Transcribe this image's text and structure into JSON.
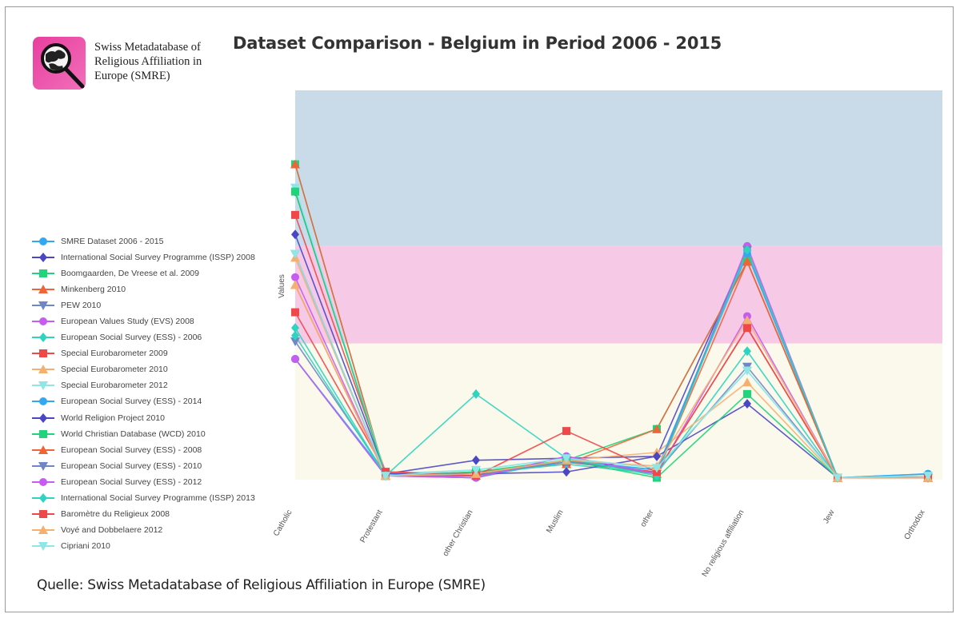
{
  "logo": {
    "text": "Swiss Metadatabase of\nReligious Affiliation in\nEurope (SMRE)",
    "icon": "magnifier-over-europe-map-icon",
    "color": "#e83e9e"
  },
  "source_note": "Quelle: Swiss Metadatabase of Religious Affiliation in Europe (SMRE)",
  "chart_data": {
    "type": "line",
    "title": "Dataset Comparison - Belgium in Period 2006 - 2015",
    "xlabel": "",
    "ylabel": "Values",
    "ylim": [
      0,
      100
    ],
    "y_scale_note": "relative (no tick labels shown)",
    "grid": false,
    "legend_position": "left",
    "background_bands": [
      {
        "from": 0,
        "to": 35,
        "color": "#fbf8ec"
      },
      {
        "from": 35,
        "to": 60,
        "color": "#f6c9e6"
      },
      {
        "from": 60,
        "to": 100,
        "color": "#c9dbe8"
      }
    ],
    "categories": [
      "Catholic",
      "Protestant",
      "other Christian",
      "Muslim",
      "other",
      "No religious affiliation",
      "Jew",
      "Orthodox"
    ],
    "series": [
      {
        "name": "SMRE Dataset 2006 - 2015",
        "color": "#33a8f0",
        "marker": "circle",
        "values": [
          31,
          1,
          0.5,
          5,
          2.5,
          58,
          0.5,
          1.5
        ]
      },
      {
        "name": "International Social Survey Programme (ISSP) 2008",
        "color": "#4a47c4",
        "marker": "diamond",
        "values": [
          74,
          1.5,
          5,
          5.5,
          6,
          59,
          0.5,
          0.5
        ]
      },
      {
        "name": "Boomgaarden, De Vreese et al. 2009",
        "color": "#1fd47a",
        "marker": "square",
        "values": [
          81,
          1,
          1,
          5,
          13,
          56,
          0.5,
          0.5
        ]
      },
      {
        "name": "Minkenberg 2010",
        "color": "#f06438",
        "marker": "triangle-up",
        "values": [
          81,
          1,
          2,
          4,
          13,
          56,
          0.5,
          0.5
        ]
      },
      {
        "name": "PEW 2010",
        "color": "#6f87c4",
        "marker": "triangle-down",
        "values": [
          35.5,
          1.5,
          1.5,
          4.5,
          2,
          29,
          0.5,
          0.5
        ]
      },
      {
        "name": "European Values Study (EVS) 2008",
        "color": "#c65cf0",
        "marker": "circle",
        "values": [
          52,
          1,
          0.5,
          6,
          1.5,
          60,
          0.5,
          0.5
        ]
      },
      {
        "name": "European Social Survey (ESS) - 2006",
        "color": "#2ed4c0",
        "marker": "diamond",
        "values": [
          39,
          1,
          1.5,
          4,
          1.5,
          33,
          0.5,
          0.5
        ]
      },
      {
        "name": "Special Eurobarometer 2009",
        "color": "#f04848",
        "marker": "square",
        "values": [
          68,
          2,
          1.5,
          4.5,
          2,
          39,
          0.5,
          0.5
        ]
      },
      {
        "name": "Special Eurobarometer 2010",
        "color": "#f5b070",
        "marker": "triangle-up",
        "values": [
          57,
          1,
          1.5,
          5,
          7,
          25,
          0.5,
          0.5
        ]
      },
      {
        "name": "Special Eurobarometer 2012",
        "color": "#8ee6e6",
        "marker": "triangle-down",
        "values": [
          75,
          1.5,
          2.5,
          5.5,
          3,
          28,
          0.5,
          1
        ]
      },
      {
        "name": "European Social Survey (ESS) - 2014",
        "color": "#33a8f0",
        "marker": "circle",
        "values": [
          31,
          1.5,
          1.5,
          4.5,
          2.5,
          59,
          0.5,
          1.5
        ]
      },
      {
        "name": "World Religion Project 2010",
        "color": "#4a47c4",
        "marker": "diamond",
        "values": [
          63,
          1.5,
          1.5,
          2,
          6,
          19.5,
          0.5,
          0.5
        ]
      },
      {
        "name": "World Christian Database (WCD) 2010",
        "color": "#1fd47a",
        "marker": "square",
        "values": [
          74,
          1,
          2,
          5,
          0.5,
          22,
          0.5,
          0.5
        ]
      },
      {
        "name": "European Social Survey (ESS) - 2008",
        "color": "#f06438",
        "marker": "triangle-up",
        "values": [
          50,
          1,
          1,
          5,
          1.5,
          56,
          0.5,
          0.5
        ]
      },
      {
        "name": "European Social Survey (ESS) - 2010",
        "color": "#6f87c4",
        "marker": "triangle-down",
        "values": [
          58,
          1,
          1,
          5,
          1.5,
          59,
          0.5,
          0.5
        ]
      },
      {
        "name": "European Social Survey (ESS) - 2012",
        "color": "#c65cf0",
        "marker": "circle",
        "values": [
          31,
          1,
          0.5,
          6,
          1.5,
          42,
          0.5,
          0.5
        ]
      },
      {
        "name": "International Social Survey Programme (ISSP) 2013",
        "color": "#2ed4c0",
        "marker": "diamond",
        "values": [
          37,
          1,
          22,
          5.5,
          1,
          59,
          0.5,
          0.5
        ]
      },
      {
        "name": "Baromètre du Religieux 2008",
        "color": "#f04848",
        "marker": "square",
        "values": [
          43,
          2,
          1,
          12.5,
          2,
          39,
          0.5,
          0.5
        ]
      },
      {
        "name": "Voyé and Dobbelaere 2012",
        "color": "#f5b070",
        "marker": "triangle-up",
        "values": [
          50,
          1,
          1.5,
          5,
          3.5,
          41,
          0.5,
          0.5
        ]
      },
      {
        "name": "Cipriani 2010",
        "color": "#8ee6e6",
        "marker": "triangle-down",
        "values": [
          58,
          1,
          2.5,
          5.5,
          3,
          28,
          0.5,
          1
        ]
      }
    ]
  }
}
